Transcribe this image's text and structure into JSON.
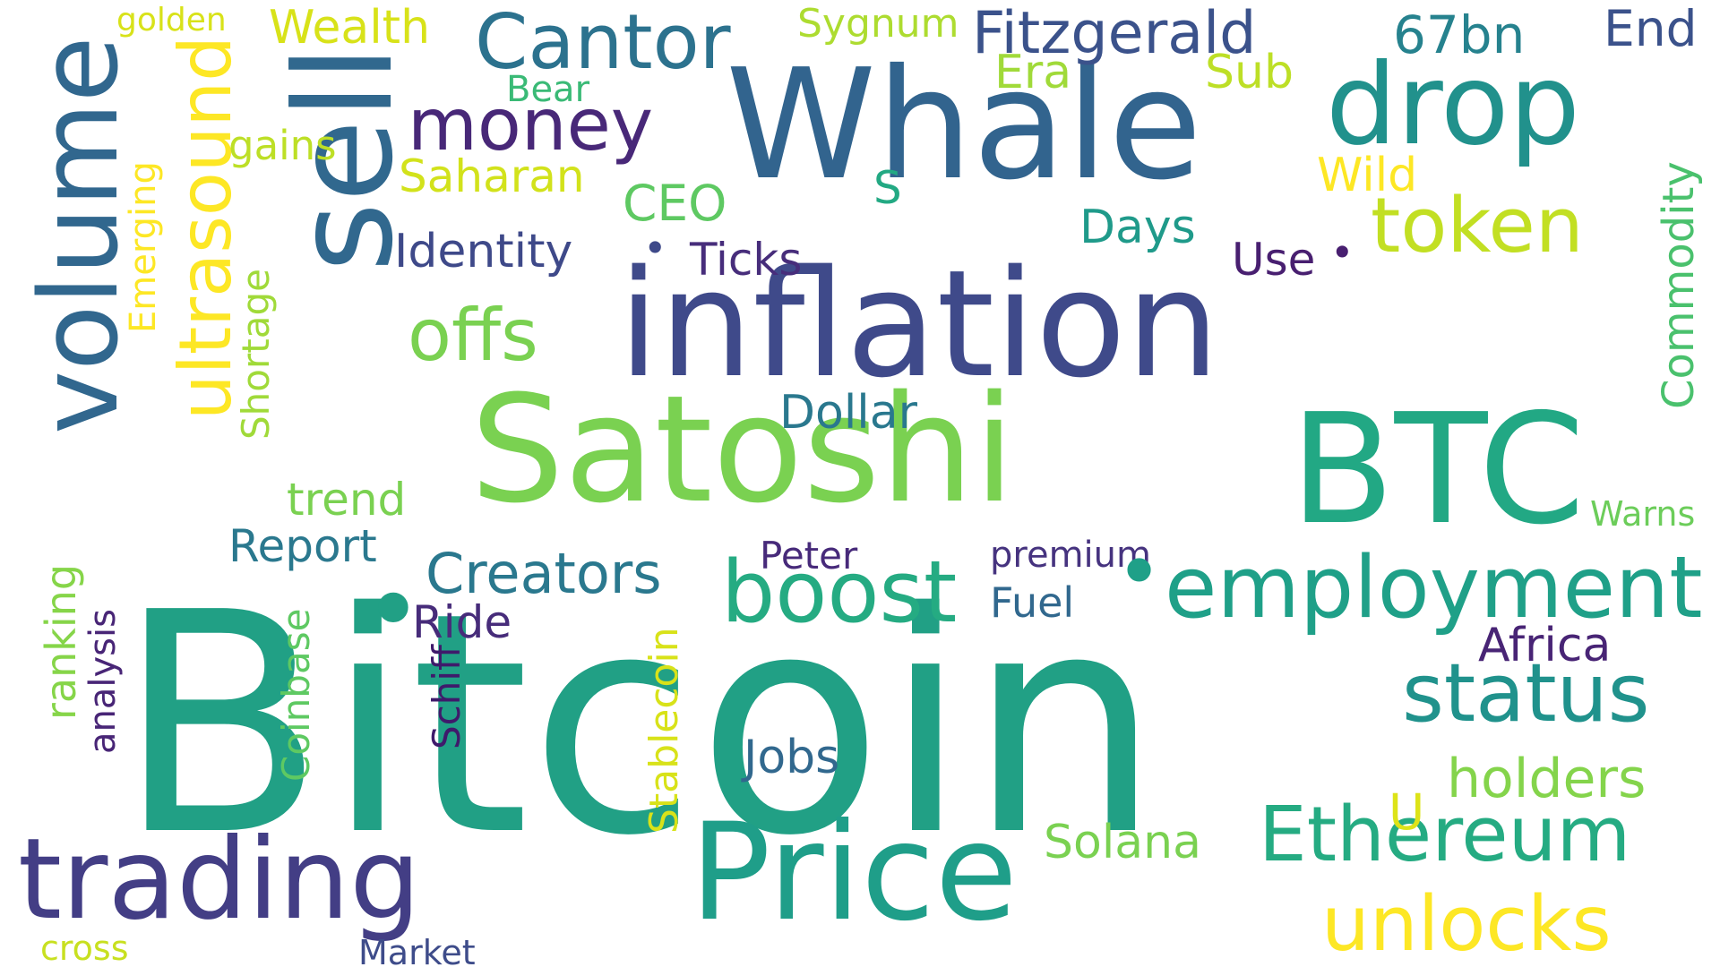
{
  "words": [
    {
      "text": "Bitcoin",
      "color": "#21a085",
      "rotated": false
    },
    {
      "text": "inflation",
      "color": "#3f4a8a",
      "rotated": false
    },
    {
      "text": "Satoshi",
      "color": "#7ad151",
      "rotated": false
    },
    {
      "text": "sell",
      "color": "#31688e",
      "rotated": true
    },
    {
      "text": "Whale",
      "color": "#32648e",
      "rotated": false
    },
    {
      "text": "BTC",
      "color": "#22a884",
      "rotated": false
    },
    {
      "text": "Price",
      "color": "#1f9e89",
      "rotated": false
    },
    {
      "text": "trading",
      "color": "#433e85",
      "rotated": false
    },
    {
      "text": "volume",
      "color": "#31678e",
      "rotated": true
    },
    {
      "text": "drop",
      "color": "#21918c",
      "rotated": false
    },
    {
      "text": "employment",
      "color": "#1fa088",
      "rotated": false
    },
    {
      "text": "ultrasound",
      "color": "#fde725",
      "rotated": true
    },
    {
      "text": "boost",
      "color": "#25ab82",
      "rotated": false
    },
    {
      "text": "Cantor",
      "color": "#2c728e",
      "rotated": false
    },
    {
      "text": "status",
      "color": "#20928c",
      "rotated": false
    },
    {
      "text": "Ethereum",
      "color": "#25ab82",
      "rotated": false
    },
    {
      "text": "unlocks",
      "color": "#fde725",
      "rotated": false
    },
    {
      "text": "token",
      "color": "#c2df23",
      "rotated": false
    },
    {
      "text": "money",
      "color": "#482878",
      "rotated": false
    },
    {
      "text": "offs",
      "color": "#7ad151",
      "rotated": false
    },
    {
      "text": "Fitzgerald",
      "color": "#3b528b",
      "rotated": false
    },
    {
      "text": "Creators",
      "color": "#2a788e",
      "rotated": false
    },
    {
      "text": "holders",
      "color": "#84d44b",
      "rotated": false
    },
    {
      "text": "Commodity",
      "color": "#4ac16d",
      "rotated": true
    },
    {
      "text": "Emerging",
      "color": "#fde725",
      "rotated": true
    },
    {
      "text": "Shortage",
      "color": "#a0da39",
      "rotated": true
    },
    {
      "text": "Stablecoin",
      "color": "#d8e219",
      "rotated": true
    },
    {
      "text": "Coinbase",
      "color": "#5ec962",
      "rotated": true
    },
    {
      "text": "ranking",
      "color": "#86d549",
      "rotated": true
    },
    {
      "text": "Africa",
      "color": "#482475",
      "rotated": false
    },
    {
      "text": "Solana",
      "color": "#7ad151",
      "rotated": false
    },
    {
      "text": "Identity",
      "color": "#3e4989",
      "rotated": false
    },
    {
      "text": "Dollar",
      "color": "#2a788e",
      "rotated": false
    },
    {
      "text": "Report",
      "color": "#2a788e",
      "rotated": false
    },
    {
      "text": "trend",
      "color": "#7ad151",
      "rotated": false
    },
    {
      "text": "Jobs",
      "color": "#31688e",
      "rotated": false
    },
    {
      "text": "Saharan",
      "color": "#d2e21b",
      "rotated": false
    },
    {
      "text": "gains",
      "color": "#bddf26",
      "rotated": false
    },
    {
      "text": "Wealth",
      "color": "#d8e219",
      "rotated": false
    },
    {
      "text": "CEO",
      "color": "#5ec962",
      "rotated": false
    },
    {
      "text": "67bn",
      "color": "#26828e",
      "rotated": false
    },
    {
      "text": "End",
      "color": "#3b528b",
      "rotated": false
    },
    {
      "text": "Days",
      "color": "#1f9a8a",
      "rotated": false
    },
    {
      "text": "Ticks",
      "color": "#472d7b",
      "rotated": false
    },
    {
      "text": "Use",
      "color": "#481f70",
      "rotated": false
    },
    {
      "text": "Ride",
      "color": "#472c7a",
      "rotated": false
    },
    {
      "text": "Fuel",
      "color": "#31688e",
      "rotated": false
    },
    {
      "text": "Sygnum",
      "color": "#addc30",
      "rotated": false
    },
    {
      "text": "Era",
      "color": "#a0da39",
      "rotated": false
    },
    {
      "text": "Sub",
      "color": "#bddf26",
      "rotated": false
    },
    {
      "text": "Wild",
      "color": "#fde725",
      "rotated": false
    },
    {
      "text": "Warns",
      "color": "#6ccd5a",
      "rotated": false
    },
    {
      "text": "premium",
      "color": "#46337f",
      "rotated": false
    },
    {
      "text": "Peter",
      "color": "#472a7a",
      "rotated": false
    },
    {
      "text": "Schiff",
      "color": "#3f1a6b",
      "rotated": true
    },
    {
      "text": "analysis",
      "color": "#482576",
      "rotated": true
    },
    {
      "text": "Market",
      "color": "#3e4c8a",
      "rotated": false
    },
    {
      "text": "cross",
      "color": "#c8e020",
      "rotated": false
    },
    {
      "text": "golden",
      "color": "#d8e219",
      "rotated": false
    },
    {
      "text": "Bear",
      "color": "#3aba76",
      "rotated": false
    },
    {
      "text": "S",
      "color": "#23a983",
      "rotated": false
    },
    {
      "text": "U",
      "color": "#dde318",
      "rotated": false
    },
    {
      "text": "•",
      "color": "#1fa088",
      "rotated": false
    },
    {
      "text": "•",
      "color": "#3e4989",
      "rotated": false
    },
    {
      "text": "•",
      "color": "#481f70",
      "rotated": false
    },
    {
      "text": "•",
      "color": "#21a085",
      "rotated": false
    }
  ]
}
